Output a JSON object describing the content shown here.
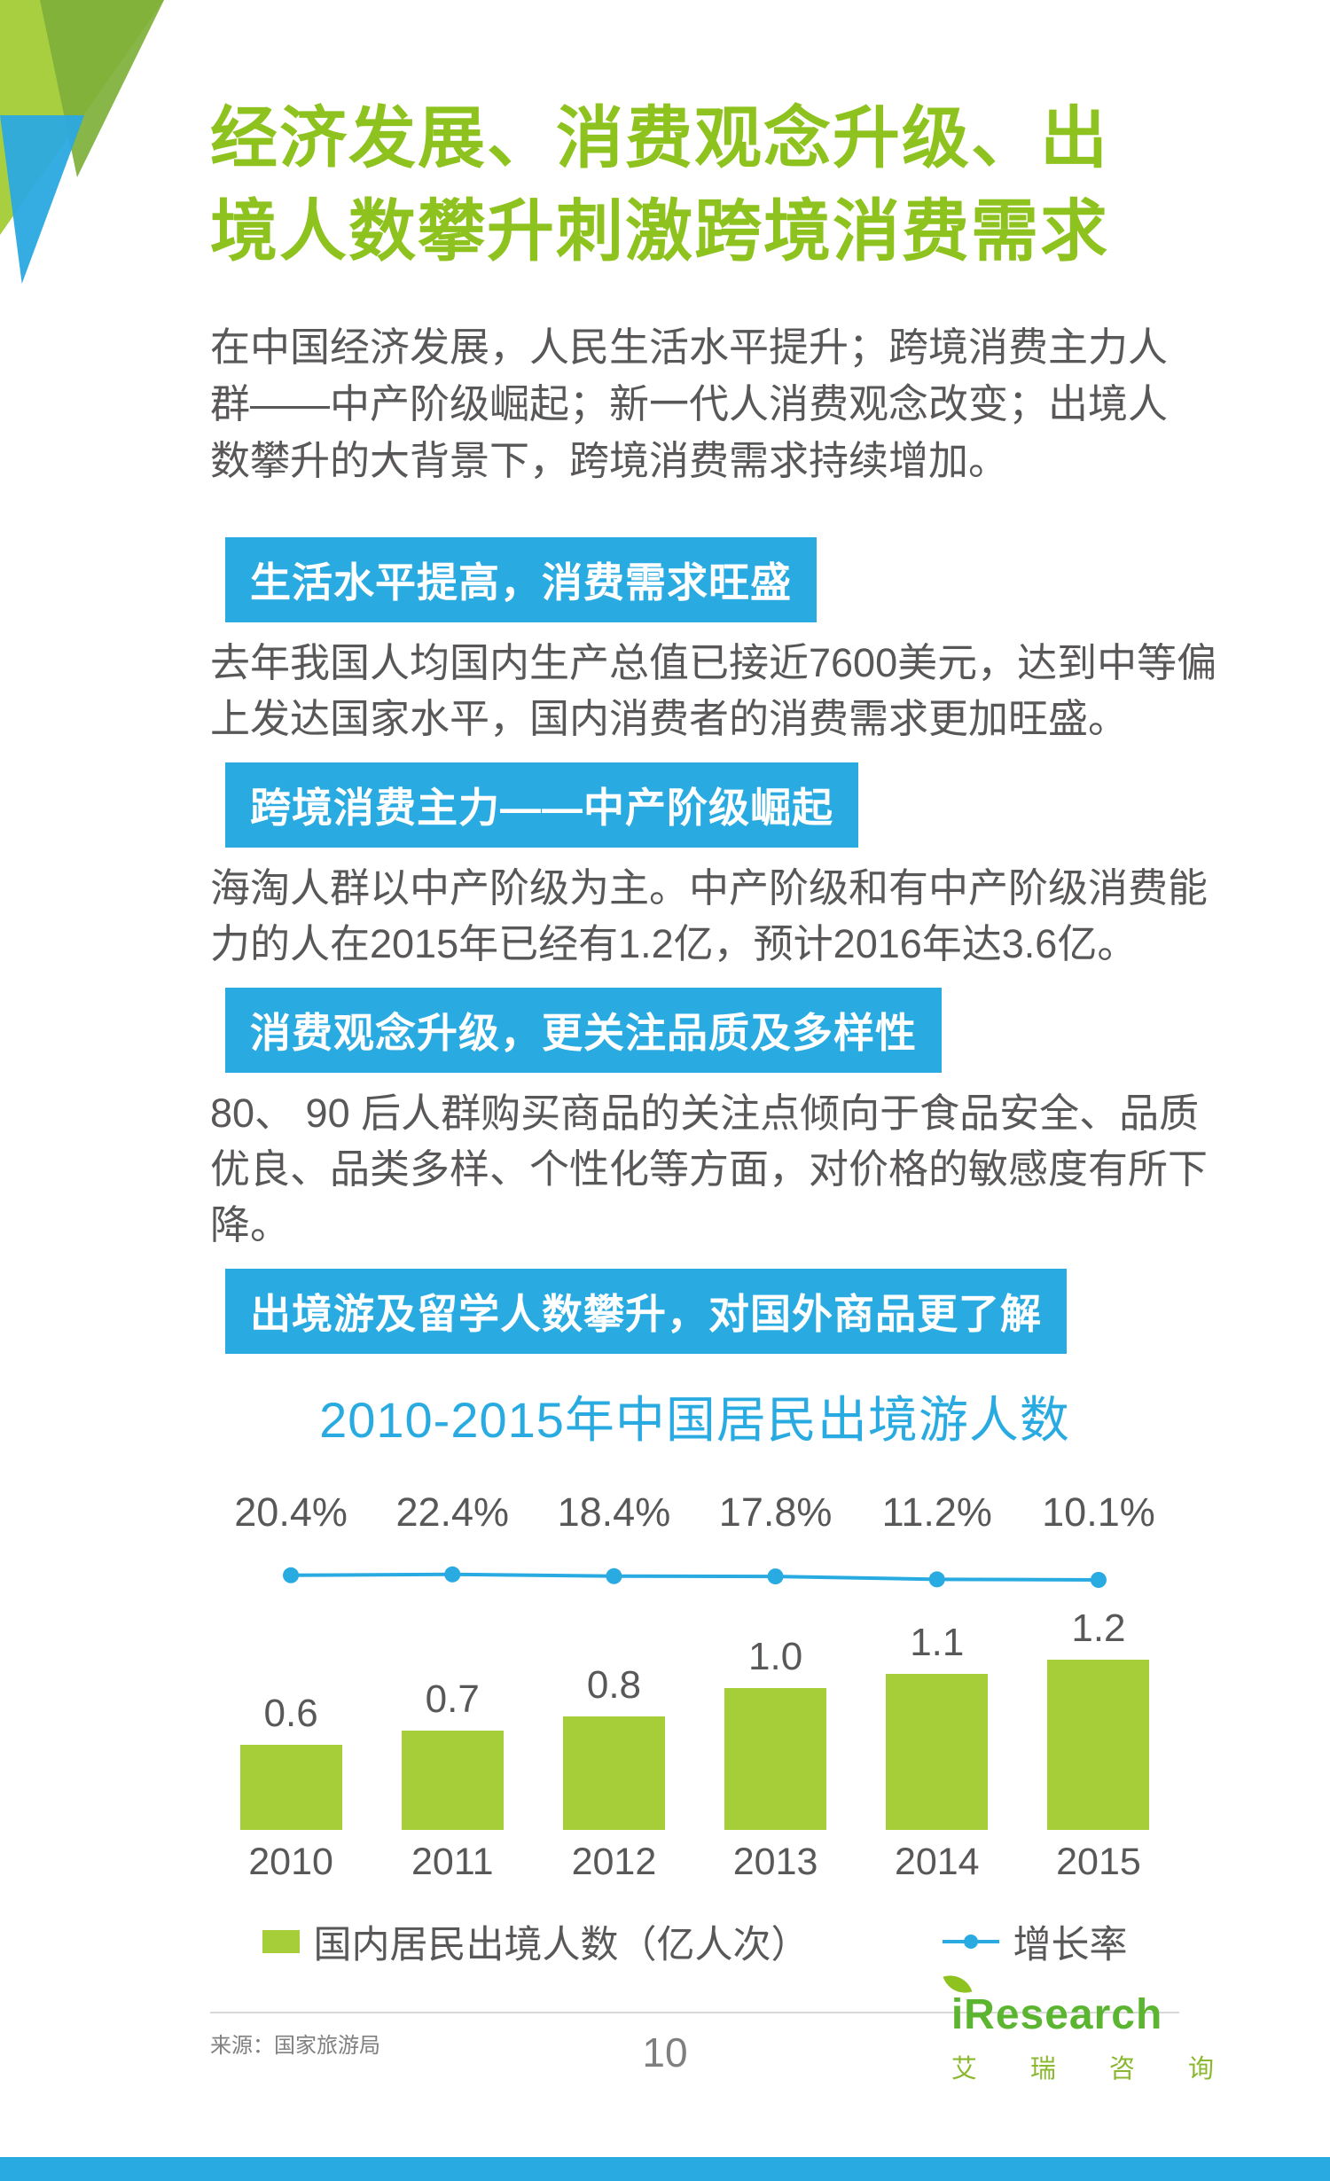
{
  "page": {
    "title_line1": "经济发展、消费观念升级、出",
    "title_line2": "境人数攀升刺激跨境消费需求",
    "intro": "在中国经济发展，人民生活水平提升；跨境消费主力人群——中产阶级崛起；新一代人消费观念改变；出境人数攀升的大背景下，跨境消费需求持续增加。",
    "page_number": "10"
  },
  "sections": [
    {
      "heading": "生活水平提高，消费需求旺盛",
      "body": "去年我国人均国内生产总值已接近7600美元，达到中等偏上发达国家水平，国内消费者的消费需求更加旺盛。"
    },
    {
      "heading": "跨境消费主力——中产阶级崛起",
      "body": "海淘人群以中产阶级为主。中产阶级和有中产阶级消费能力的人在2015年已经有1.2亿，预计2016年达3.6亿。"
    },
    {
      "heading": "消费观念升级，更关注品质及多样性",
      "body": "80、 90 后人群购买商品的关注点倾向于食品安全、品质优良、品类多样、个性化等方面，对价格的敏感度有所下降。"
    },
    {
      "heading": "出境游及留学人数攀升，对国外商品更了解",
      "body": ""
    }
  ],
  "chart_data": {
    "type": "bar",
    "title": "2010-2015年中国居民出境游人数",
    "categories": [
      "2010",
      "2011",
      "2012",
      "2013",
      "2014",
      "2015"
    ],
    "series": [
      {
        "name": "国内居民出境人数（亿人次）",
        "type": "bar",
        "values": [
          0.6,
          0.7,
          0.8,
          1.0,
          1.1,
          1.2
        ],
        "color": "#a5ce39"
      },
      {
        "name": "增长率",
        "type": "line",
        "values_percent": [
          20.4,
          22.4,
          18.4,
          17.8,
          11.2,
          10.1
        ],
        "labels": [
          "20.4%",
          "22.4%",
          "18.4%",
          "17.8%",
          "11.2%",
          "10.1%"
        ],
        "color": "#29abe2"
      }
    ],
    "legend": [
      "国内居民出境人数（亿人次）",
      "增长率"
    ],
    "legend_position": "bottom",
    "grid": false,
    "ylabel": "",
    "xlabel": ""
  },
  "footer": {
    "source": "来源：国家旅游局",
    "logo_text": "iResearch",
    "logo_sub": "艾 瑞 咨 询"
  },
  "colors": {
    "title_green": "#8ec31f",
    "bar_green": "#a5ce39",
    "banner_blue": "#29abe2",
    "body_text": "#595757"
  }
}
